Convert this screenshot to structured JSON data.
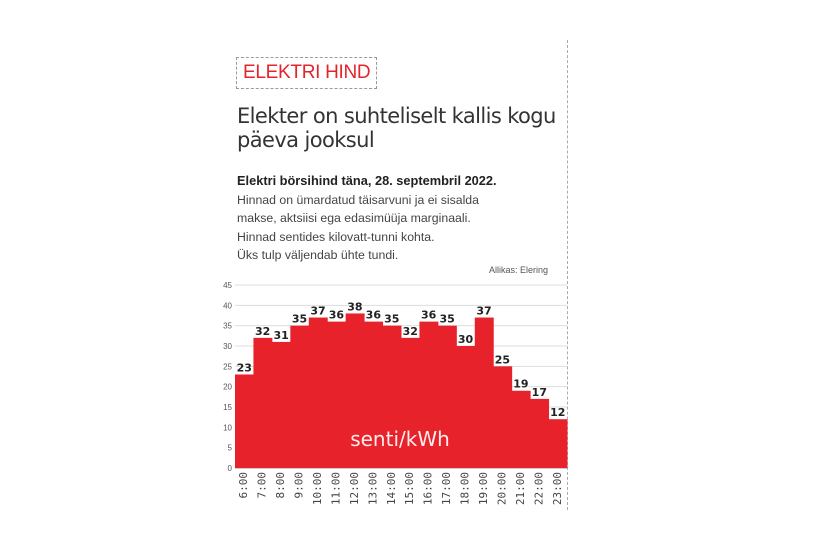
{
  "kicker": "ELEKTRI HIND",
  "headline": "Elekter on suhteliselt kallis kogu päeva jooksul",
  "subtitle_bold": "Elektri börsihind täna, 28. septembril 2022.",
  "description": [
    "Hinnad on ümardatud täisarvuni ja ei sisalda",
    "makse, aktsiisi ega edasimüüja marginaali.",
    "Hinnad sentides kilovatt-tunni kohta.",
    "Üks tulp väljendab ühte tundi."
  ],
  "source": "Allikas: Elering",
  "chart_data": {
    "type": "bar",
    "categories": [
      "6:00",
      "7:00",
      "8:00",
      "9:00",
      "10:00",
      "11:00",
      "12:00",
      "13:00",
      "14:00",
      "15:00",
      "16:00",
      "17:00",
      "18:00",
      "19:00",
      "20:00",
      "21:00",
      "22:00",
      "23:00"
    ],
    "values": [
      23,
      32,
      31,
      35,
      37,
      36,
      38,
      36,
      35,
      32,
      36,
      35,
      30,
      37,
      25,
      19,
      17,
      12
    ],
    "unit_label": "senti/kWh",
    "ylim": [
      0,
      45
    ],
    "yticks": [
      0,
      5,
      10,
      15,
      20,
      25,
      30,
      35,
      40,
      45
    ],
    "grid": true,
    "bar_color": "#e8222a"
  }
}
